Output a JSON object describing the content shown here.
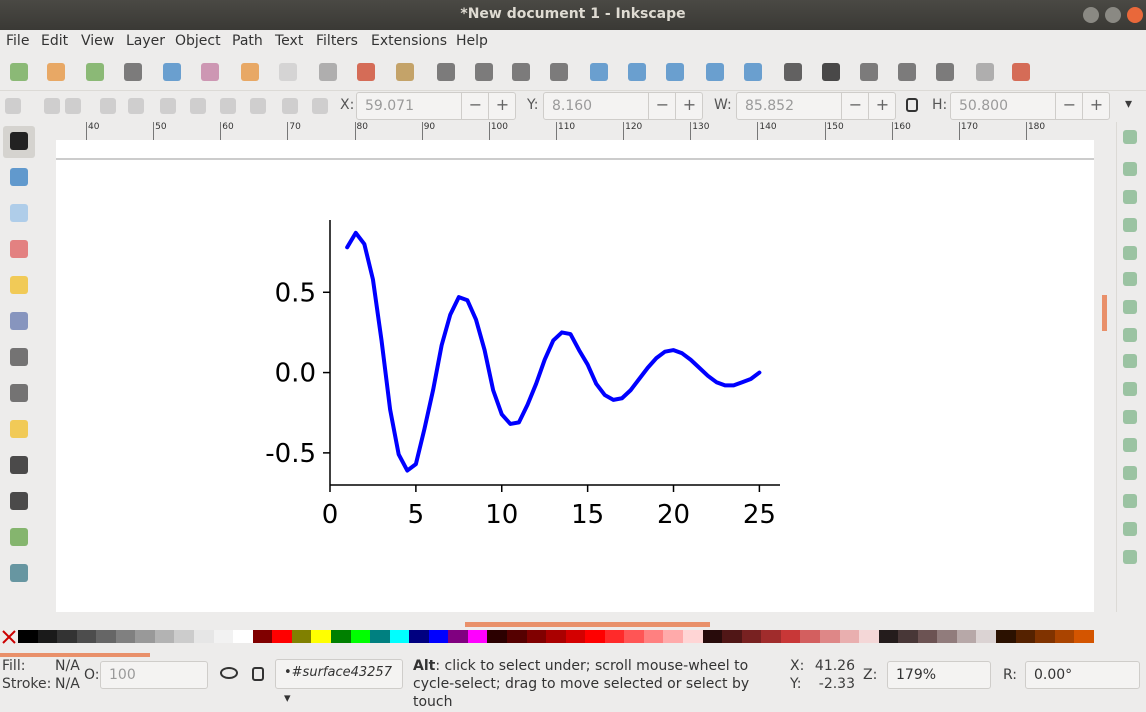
{
  "window": {
    "title": "*New document 1 - Inkscape"
  },
  "menu": [
    "File",
    "Edit",
    "View",
    "Layer",
    "Object",
    "Path",
    "Text",
    "Filters",
    "Extensions",
    "Help"
  ],
  "toolbar": {
    "fields": [
      {
        "label": "X:",
        "value": "59.071"
      },
      {
        "label": "Y:",
        "value": "8.160"
      },
      {
        "label": "W:",
        "value": "85.852"
      },
      {
        "label": "H:",
        "value": "50.800"
      }
    ]
  },
  "ruler": {
    "labels": [
      40,
      50,
      60,
      70,
      80,
      90,
      100,
      110,
      120,
      130,
      140,
      150,
      160,
      170,
      180
    ]
  },
  "chart_data": {
    "type": "line",
    "color": "#0000ff",
    "x": [
      1,
      1.5,
      2,
      2.5,
      3,
      3.5,
      4,
      4.5,
      5,
      5.5,
      6,
      6.5,
      7,
      7.5,
      8,
      8.5,
      9,
      9.5,
      10,
      10.5,
      11,
      11.5,
      12,
      12.5,
      13,
      13.5,
      14,
      14.5,
      15,
      15.5,
      16,
      16.5,
      17,
      17.5,
      18,
      18.5,
      19,
      19.5,
      20,
      20.5,
      21,
      21.5,
      22,
      22.5,
      23,
      23.5,
      24,
      24.5,
      25
    ],
    "values": [
      0.78,
      0.87,
      0.8,
      0.58,
      0.2,
      -0.23,
      -0.51,
      -0.61,
      -0.57,
      -0.35,
      -0.11,
      0.17,
      0.36,
      0.47,
      0.45,
      0.33,
      0.14,
      -0.11,
      -0.26,
      -0.32,
      -0.31,
      -0.2,
      -0.07,
      0.08,
      0.2,
      0.25,
      0.24,
      0.14,
      0.05,
      -0.07,
      -0.14,
      -0.17,
      -0.16,
      -0.11,
      -0.04,
      0.03,
      0.09,
      0.13,
      0.14,
      0.12,
      0.08,
      0.03,
      -0.02,
      -0.06,
      -0.08,
      -0.08,
      -0.06,
      -0.04,
      0.0
    ],
    "xlim": [
      0,
      26.2
    ],
    "ylim": [
      -0.7,
      0.95
    ],
    "xticks": [
      0,
      5,
      10,
      15,
      20,
      25
    ],
    "yticks": [
      -0.5,
      {
        "value": 0,
        "label": "0.0"
      },
      0.5
    ]
  },
  "palette": [
    "#000000",
    "#1a1a1a",
    "#333333",
    "#4d4d4d",
    "#666666",
    "#808080",
    "#999999",
    "#b3b3b3",
    "#cccccc",
    "#e6e6e6",
    "#f2f2f2",
    "#ffffff",
    "#800000",
    "#ff0000",
    "#808000",
    "#ffff00",
    "#008000",
    "#00ff00",
    "#008080",
    "#00ffff",
    "#000080",
    "#0000ff",
    "#800080",
    "#ff00ff",
    "#2b0000",
    "#550000",
    "#800000",
    "#aa0000",
    "#d40000",
    "#ff0000",
    "#ff2a2a",
    "#ff5555",
    "#ff8080",
    "#ffaaaa",
    "#ffd5d5",
    "#280b0b",
    "#501616",
    "#782121",
    "#a02c2c",
    "#c83737",
    "#d35f5f",
    "#de8787",
    "#e9afaf",
    "#f4d7d7",
    "#241c1c",
    "#483737",
    "#6c5353",
    "#917c7c",
    "#b7a8a8",
    "#dbd3d3",
    "#2b1100",
    "#552200",
    "#803300",
    "#aa4400",
    "#d45500"
  ],
  "status": {
    "fill_label": "Fill:",
    "fill": "N/A",
    "stroke_label": "Stroke:",
    "stroke": "N/A",
    "opacity_label": "O:",
    "opacity": "100",
    "layer": "•#surface43257",
    "message_key": "Alt",
    "message": ": click to select under; scroll mouse-wheel to cycle-select; drag to move selected or select by touch",
    "cursor_x_label": "X:",
    "cursor_x": "41.26",
    "cursor_y_label": "Y:",
    "cursor_y": "-2.33",
    "zoom_label": "Z:",
    "zoom": "179%",
    "rotation_label": "R:",
    "rotation": "0.00°"
  }
}
